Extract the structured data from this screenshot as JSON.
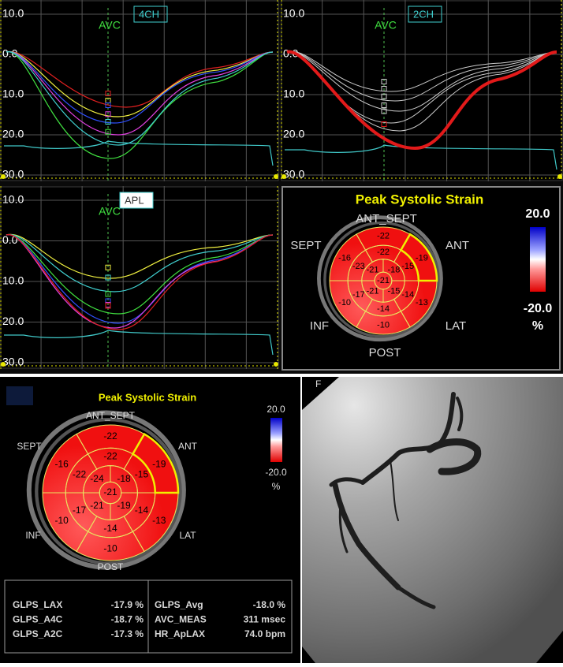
{
  "echo_panels": [
    {
      "view": "4CH",
      "event": "AVC",
      "y_labels": [
        "10.0",
        "0.0",
        "10.0",
        "20.0",
        "30.0"
      ]
    },
    {
      "view": "2CH",
      "event": "AVC",
      "y_labels": [
        "10.0",
        "0.0",
        "10.0",
        "20.0",
        "30.0"
      ]
    },
    {
      "view": "APL",
      "event": "AVC",
      "y_labels": [
        "10.0",
        "0.0",
        "10.0",
        "20.0",
        "30.0"
      ]
    }
  ],
  "bullseyes": [
    {
      "title": "Peak Systolic Strain",
      "directions": [
        "ANT_SEPT",
        "ANT",
        "LAT",
        "POST",
        "INF",
        "SEPT"
      ],
      "basal": [
        "-22",
        "-19",
        "-13",
        "-10",
        "-10",
        "-16"
      ],
      "mid": [
        "-22",
        "-15",
        "-14",
        "-14",
        "-17",
        "-23"
      ],
      "apical": [
        "-21",
        "-18",
        "-15",
        "-21"
      ],
      "apex": "-21",
      "scale_max": "20.0",
      "scale_min": "-20.0",
      "unit": "%"
    },
    {
      "title": "Peak Systolic Strain",
      "directions": [
        "ANT_SEPT",
        "ANT",
        "LAT",
        "POST",
        "INF",
        "SEPT"
      ],
      "basal": [
        "-22",
        "-19",
        "-13",
        "-10",
        "-10",
        "-16"
      ],
      "mid": [
        "-22",
        "-15",
        "-14",
        "-14",
        "-17",
        "-22"
      ],
      "apical": [
        "-24",
        "-18",
        "-19",
        "-21"
      ],
      "apex": "-21",
      "scale_max": "20.0",
      "scale_min": "-20.0",
      "unit": "%"
    }
  ],
  "global_strain": {
    "rows": [
      [
        "GLPS_LAX",
        "-17.9 %",
        "GLPS_Avg",
        "-18.0 %"
      ],
      [
        "GLPS_A4C",
        "-18.7 %",
        "AVC_MEAS",
        "311 msec"
      ],
      [
        "GLPS_A2C",
        "-17.3 %",
        "HR_ApLAX",
        "74.0 bpm"
      ]
    ]
  },
  "angiogram": {
    "label": "F"
  }
}
